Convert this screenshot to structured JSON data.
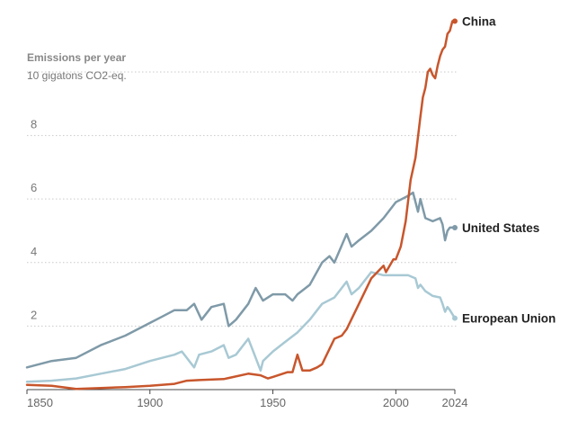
{
  "chart_data": {
    "type": "line",
    "ylabel": "Emissions per year",
    "ylabel_unit": "10 gigatons CO2-eq.",
    "xlim": [
      1850,
      2024
    ],
    "ylim": [
      0,
      11.5
    ],
    "x_ticks": [
      1850,
      1900,
      1950,
      2000,
      2024
    ],
    "y_ticks": [
      2,
      4,
      6,
      8,
      10
    ],
    "y_tick_labels": [
      "2",
      "4",
      "6",
      "8",
      ""
    ],
    "grid": "horizontal dotted",
    "series": [
      {
        "name": "China",
        "color": "#c8562c",
        "label_position": "end",
        "x": [
          1850,
          1860,
          1870,
          1880,
          1890,
          1900,
          1910,
          1915,
          1920,
          1930,
          1940,
          1945,
          1948,
          1950,
          1956,
          1958,
          1960,
          1962,
          1965,
          1968,
          1970,
          1975,
          1978,
          1980,
          1985,
          1990,
          1995,
          1996,
          1999,
          2000,
          2002,
          2004,
          2006,
          2008,
          2010,
          2011,
          2012,
          2013,
          2014,
          2015,
          2016,
          2017,
          2018,
          2019,
          2020,
          2021,
          2022,
          2023,
          2024
        ],
        "y": [
          0.15,
          0.12,
          0.02,
          0.05,
          0.08,
          0.12,
          0.18,
          0.28,
          0.3,
          0.33,
          0.5,
          0.45,
          0.35,
          0.4,
          0.55,
          0.55,
          1.1,
          0.6,
          0.6,
          0.7,
          0.8,
          1.6,
          1.7,
          1.9,
          2.7,
          3.5,
          3.9,
          3.7,
          4.1,
          4.1,
          4.5,
          5.3,
          6.6,
          7.3,
          8.6,
          9.2,
          9.5,
          10,
          10.1,
          9.9,
          9.8,
          10.2,
          10.5,
          10.7,
          10.8,
          11.2,
          11.3,
          11.6,
          11.6
        ]
      },
      {
        "name": "United States",
        "color": "#7f9aa8",
        "label_position": "end",
        "x": [
          1850,
          1860,
          1870,
          1880,
          1890,
          1900,
          1905,
          1910,
          1915,
          1918,
          1921,
          1925,
          1930,
          1932,
          1935,
          1940,
          1943,
          1946,
          1950,
          1955,
          1958,
          1960,
          1965,
          1970,
          1973,
          1975,
          1980,
          1982,
          1985,
          1990,
          1995,
          2000,
          2005,
          2007,
          2009,
          2010,
          2012,
          2015,
          2018,
          2019,
          2020,
          2021,
          2022,
          2024
        ],
        "y": [
          0.7,
          0.9,
          1.0,
          1.4,
          1.7,
          2.1,
          2.3,
          2.5,
          2.5,
          2.7,
          2.2,
          2.6,
          2.7,
          2.0,
          2.2,
          2.7,
          3.2,
          2.8,
          3.0,
          3.0,
          2.8,
          3.0,
          3.3,
          4.0,
          4.2,
          4.0,
          4.9,
          4.5,
          4.7,
          5.0,
          5.4,
          5.9,
          6.1,
          6.2,
          5.6,
          6.0,
          5.4,
          5.3,
          5.4,
          5.2,
          4.7,
          5.0,
          5.1,
          5.1
        ]
      },
      {
        "name": "European Union",
        "color": "#a8c9d4",
        "label_position": "end",
        "x": [
          1850,
          1860,
          1870,
          1880,
          1890,
          1900,
          1910,
          1913,
          1918,
          1920,
          1925,
          1930,
          1932,
          1935,
          1940,
          1942,
          1945,
          1946,
          1950,
          1955,
          1960,
          1965,
          1970,
          1975,
          1980,
          1982,
          1985,
          1990,
          1995,
          2000,
          2005,
          2008,
          2009,
          2010,
          2012,
          2015,
          2018,
          2019,
          2020,
          2021,
          2022,
          2024
        ],
        "y": [
          0.25,
          0.28,
          0.35,
          0.5,
          0.65,
          0.9,
          1.1,
          1.2,
          0.7,
          1.1,
          1.2,
          1.4,
          1.0,
          1.1,
          1.6,
          1.2,
          0.6,
          0.9,
          1.2,
          1.5,
          1.8,
          2.2,
          2.7,
          2.9,
          3.4,
          3.0,
          3.2,
          3.7,
          3.6,
          3.6,
          3.6,
          3.5,
          3.2,
          3.3,
          3.1,
          2.95,
          2.9,
          2.7,
          2.45,
          2.6,
          2.5,
          2.25
        ]
      }
    ]
  }
}
